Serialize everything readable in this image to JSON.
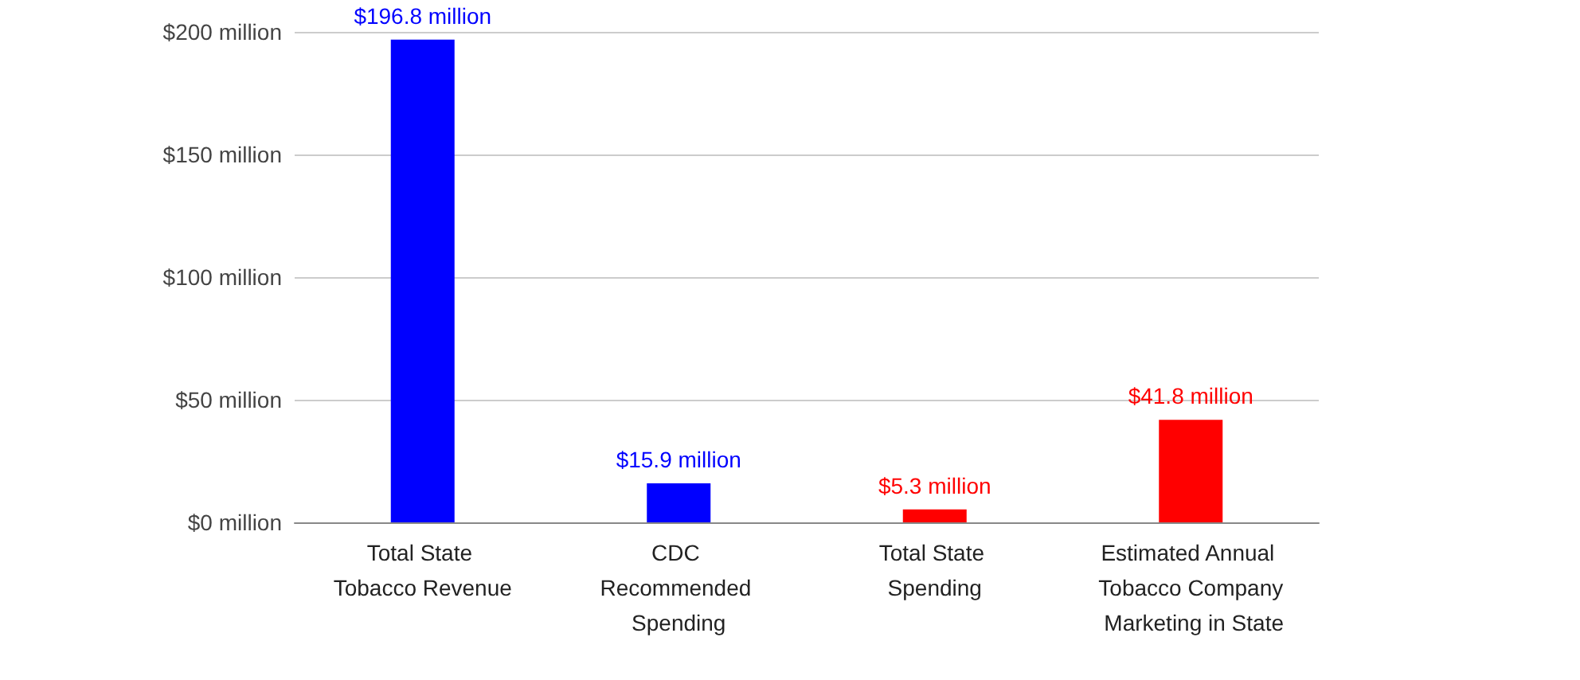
{
  "chart_data": {
    "type": "bar",
    "categories": [
      "Total State Tobacco Revenue",
      "CDC Recommended Spending",
      "Total State Spending",
      "Estimated Annual Tobacco Company Marketing in State"
    ],
    "values": [
      196.8,
      15.9,
      5.3,
      41.8
    ],
    "colors": [
      "#0000ff",
      "#0000ff",
      "#ff0000",
      "#ff0000"
    ],
    "value_labels": [
      "$196.8 million",
      "$15.9 million",
      "$5.3 million",
      "$41.8 million"
    ],
    "ylim": [
      0,
      200
    ],
    "yticks": [
      {
        "value": 0,
        "label": "$0 million"
      },
      {
        "value": 50,
        "label": "$50 million"
      },
      {
        "value": 100,
        "label": "$100 million"
      },
      {
        "value": 150,
        "label": "$150 million"
      },
      {
        "value": 200,
        "label": "$200 million"
      }
    ],
    "grid": "y"
  }
}
